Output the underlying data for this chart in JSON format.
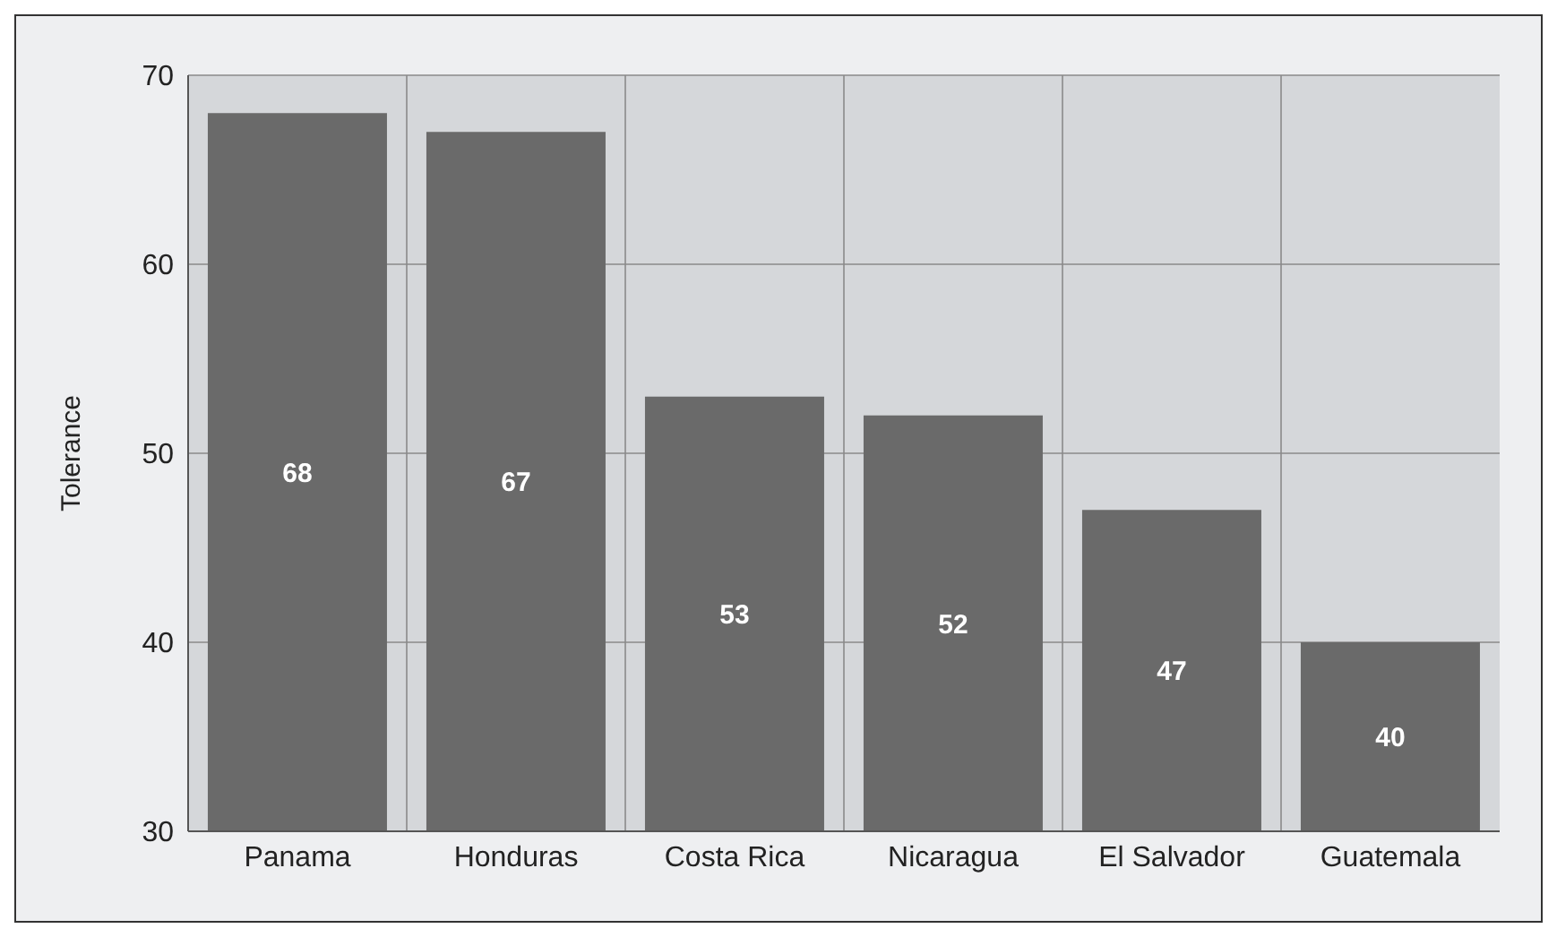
{
  "chart_data": {
    "type": "bar",
    "ylabel": "Tolerance",
    "categories": [
      "Panama",
      "Honduras",
      "Costa Rica",
      "Nicaragua",
      "El Salvador",
      "Guatemala"
    ],
    "values": [
      68,
      67,
      53,
      52,
      47,
      40
    ],
    "color": "#6a6a6a",
    "ylim": [
      30,
      70
    ],
    "yticks": [
      30,
      40,
      50,
      60,
      70
    ],
    "grid": true,
    "data_labels": true
  }
}
